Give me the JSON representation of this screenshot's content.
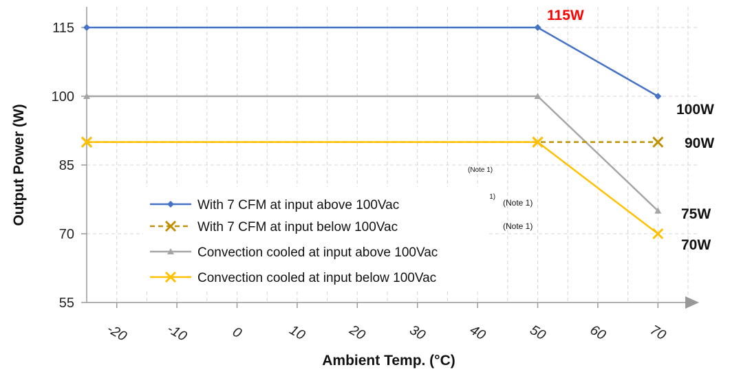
{
  "chart_data": {
    "type": "line",
    "xlabel": "Ambient Temp. (°C)",
    "ylabel": "Output Power (W)",
    "x_ticks": [
      "-20",
      "-10",
      "0",
      "10",
      "20",
      "30",
      "40",
      "50",
      "60",
      "70"
    ],
    "y_ticks": [
      "55",
      "70",
      "85",
      "100",
      "115"
    ],
    "xlim": [
      -25,
      75
    ],
    "ylim": [
      55,
      115
    ],
    "grid": true,
    "legend_position": "bottom-left",
    "series": [
      {
        "name": "With 7 CFM at input above 100Vac",
        "color": "#4472C4",
        "dash": "solid",
        "marker": "diamond",
        "x": [
          -25,
          50,
          70
        ],
        "y": [
          115,
          115,
          100
        ]
      },
      {
        "name": "With 7 CFM at input below 100Vac",
        "color": "#BF9000",
        "dash": "dashed",
        "marker": "x",
        "x": [
          -25,
          50,
          70
        ],
        "y": [
          90,
          90,
          90
        ]
      },
      {
        "name": "Convection cooled at input above 100Vac",
        "color": "#A5A5A5",
        "dash": "solid",
        "marker": "triangle",
        "x": [
          -25,
          50,
          70
        ],
        "y": [
          100,
          100,
          75
        ]
      },
      {
        "name": "Convection cooled at input below 100Vac",
        "color": "#FFC000",
        "dash": "solid",
        "marker": "x",
        "x": [
          -25,
          50,
          70
        ],
        "y": [
          90,
          90,
          70
        ]
      }
    ],
    "annotations": [
      {
        "text": "115W",
        "color": "#FF0000"
      },
      {
        "text": "100W",
        "color": "#111111"
      },
      {
        "text": "90W",
        "color": "#111111"
      },
      {
        "text": "75W",
        "color": "#111111"
      },
      {
        "text": "70W",
        "color": "#111111"
      }
    ],
    "notes": [
      "(Note 1)",
      "(Note 1)",
      "(Note 1)",
      "(Note 1)"
    ]
  }
}
